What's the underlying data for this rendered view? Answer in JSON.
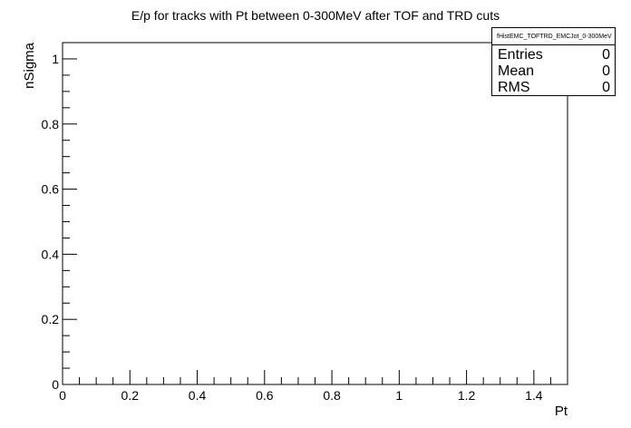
{
  "chart_data": {
    "type": "histogram",
    "title": "E/p for tracks with Pt between 0-300MeV after TOF and TRD cuts",
    "xlabel": "Pt",
    "ylabel": "nSigma",
    "xlim": [
      0,
      1.5
    ],
    "ylim": [
      0,
      1.05
    ],
    "x_ticks": [
      "0",
      "0.2",
      "0.4",
      "0.6",
      "0.8",
      "1",
      "1.2",
      "1.4"
    ],
    "y_ticks": [
      "0",
      "0.2",
      "0.4",
      "0.6",
      "0.8",
      "1"
    ],
    "values": [],
    "grid": false,
    "legend": "top-right"
  },
  "stats": {
    "name": "fHistEMC_TOFTRD_EMCJot_0-300MeV",
    "rows": [
      {
        "label": "Entries",
        "value": "0"
      },
      {
        "label": "Mean",
        "value": "0"
      },
      {
        "label": "RMS",
        "value": "0"
      }
    ]
  }
}
